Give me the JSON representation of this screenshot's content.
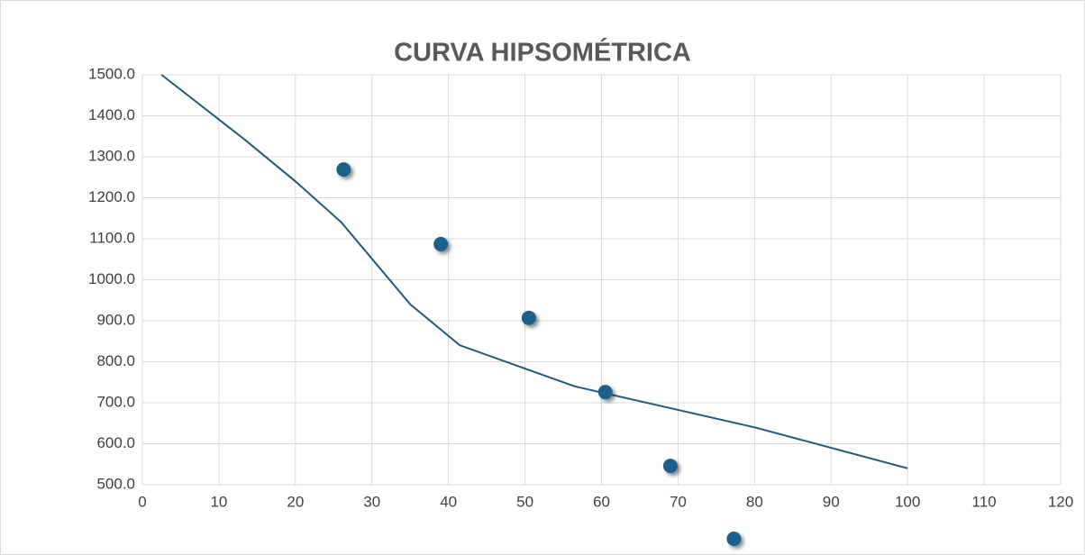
{
  "chart_data": {
    "type": "line",
    "title": "CURVA HIPSOMÉTRICA",
    "series": [
      {
        "color": "#1f5a7a",
        "line": true,
        "markers": false,
        "x": [
          2.5,
          13.5,
          20,
          26,
          35,
          41.5,
          56.5,
          80,
          100
        ],
        "values": [
          1500,
          1340,
          1240,
          1140,
          940,
          840,
          740,
          640,
          540
        ]
      },
      {
        "color": "#1f5f8b",
        "line": false,
        "markers": true,
        "x": [
          26.3,
          39.0,
          50.5,
          60.5,
          69.0,
          77.3
        ],
        "values": [
          1269,
          1087,
          907,
          726,
          546,
          368
        ]
      }
    ],
    "xlim": [
      0,
      120
    ],
    "xticks": [
      0,
      10,
      20,
      30,
      40,
      50,
      60,
      70,
      80,
      90,
      100,
      110,
      120
    ],
    "ylim": [
      500,
      1500
    ],
    "yticks": [
      {
        "value": 500,
        "label": "500.0"
      },
      {
        "value": 600,
        "label": "600.0"
      },
      {
        "value": 700,
        "label": "700.0"
      },
      {
        "value": 800,
        "label": "800.0"
      },
      {
        "value": 900,
        "label": "900.0"
      },
      {
        "value": 1000,
        "label": "1000.0"
      },
      {
        "value": 1100,
        "label": "1100.0"
      },
      {
        "value": 1200,
        "label": "1200.0"
      },
      {
        "value": 1300,
        "label": "1300.0"
      },
      {
        "value": 1400,
        "label": "1400.0"
      },
      {
        "value": 1500,
        "label": "1500.0"
      }
    ],
    "grid": true
  }
}
